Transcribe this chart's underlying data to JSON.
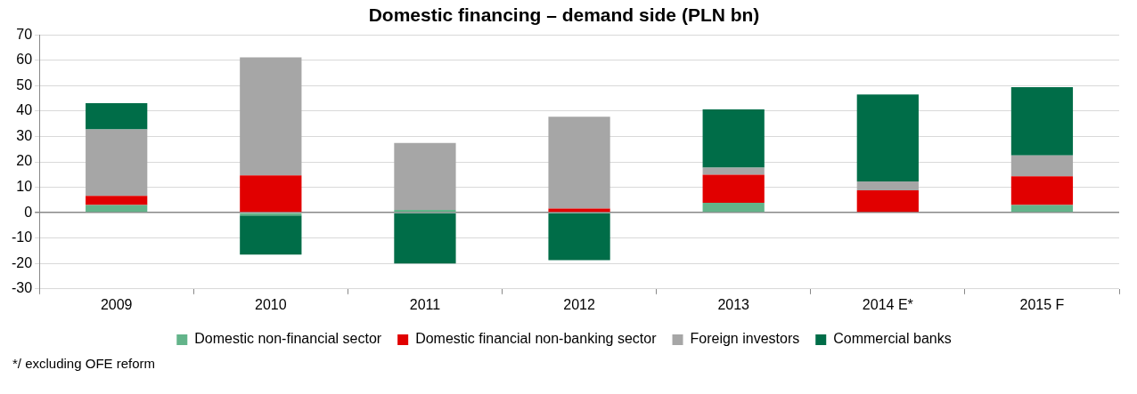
{
  "chart_data": {
    "type": "bar",
    "title": "Domestic financing – demand side (PLN bn)",
    "categories": [
      "2009",
      "2010",
      "2011",
      "2012",
      "2013",
      "2014 E*",
      "2015 F"
    ],
    "stacked": true,
    "series": [
      {
        "name": "Domestic non-financial sector",
        "color": "#63b48a",
        "values": [
          3,
          -1.1,
          1.1,
          0,
          3.9,
          0,
          3
        ]
      },
      {
        "name": "Domestic financial non-banking sector",
        "color": "#e10000",
        "values": [
          3.6,
          14.7,
          0,
          1.6,
          11,
          8.8,
          11.3
        ]
      },
      {
        "name": "Foreign investors",
        "color": "#a6a6a6",
        "values": [
          26.2,
          46.4,
          26.3,
          36.2,
          2.8,
          3.5,
          8.2
        ]
      },
      {
        "name": "Commercial banks",
        "color": "#006d48",
        "values": [
          10.3,
          -15.4,
          -20,
          -18.7,
          23,
          34.2,
          26.9
        ]
      }
    ],
    "ylim": [
      -30,
      70
    ],
    "yticks": [
      -30,
      -20,
      -10,
      0,
      10,
      20,
      30,
      40,
      50,
      60,
      70
    ],
    "grid": "y",
    "legend": "bottom",
    "annotations": [
      "*/ excluding OFE reform"
    ]
  }
}
